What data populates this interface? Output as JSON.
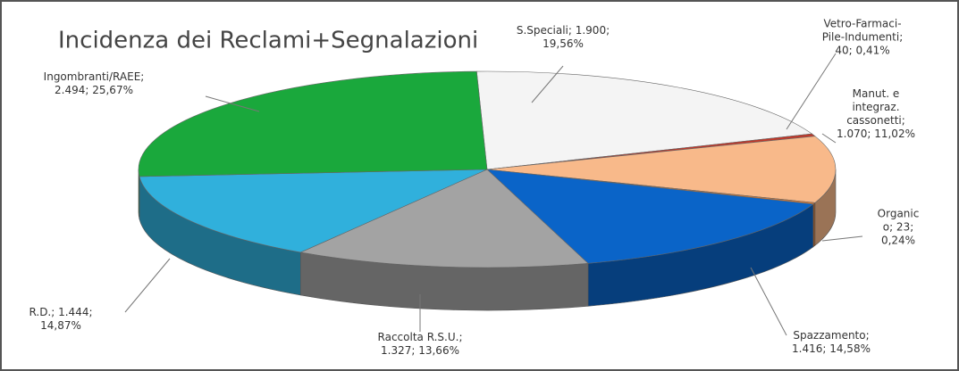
{
  "chart_data": {
    "type": "pie3d",
    "title": "Incidenza dei Reclami+Segnalazioni",
    "values": [
      1900,
      40,
      1070,
      23,
      1416,
      1327,
      1444,
      2494
    ],
    "colors": [
      "#f4f4f4",
      "#c0392b",
      "#f8b98a",
      "#e07a30",
      "#0a64c8",
      "#a3a3a3",
      "#30b0dc",
      "#1aa83c"
    ],
    "value_labels": [
      [
        "S.Speciali; 1.900;",
        "19,56%"
      ],
      [
        "Vetro-Farmaci-",
        "Pile-Indumenti;",
        "40; 0,41%"
      ],
      [
        "Manut. e",
        "integraz.",
        "cassonetti;",
        "1.070; 11,02%"
      ],
      [
        "Organic",
        "o; 23;",
        "0,24%"
      ],
      [
        "Spazzamento;",
        "1.416; 14,58%"
      ],
      [
        "Raccolta R.S.U.;",
        "1.327; 13,66%"
      ],
      [
        "R.D.; 1.444;",
        "14,87%"
      ],
      [
        "Ingombranti/RAEE;",
        "2.494; 25,67%"
      ]
    ]
  }
}
